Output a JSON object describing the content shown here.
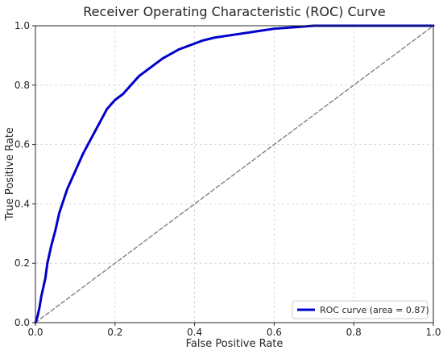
{
  "chart_data": {
    "type": "line",
    "title": "Receiver Operating Characteristic (ROC) Curve",
    "xlabel": "False Positive Rate",
    "ylabel": "True Positive Rate",
    "xlim": [
      0.0,
      1.0
    ],
    "ylim": [
      0.0,
      1.0
    ],
    "x_ticks": [
      "0.0",
      "0.2",
      "0.4",
      "0.6",
      "0.8",
      "1.0"
    ],
    "y_ticks": [
      "0.0",
      "0.2",
      "0.4",
      "0.6",
      "0.8",
      "1.0"
    ],
    "grid": true,
    "legend_position": "lower-right",
    "series": [
      {
        "name": "ROC curve (area = 0.87)",
        "color": "#0000cc",
        "style": "solid",
        "x": [
          0.0,
          0.005,
          0.01,
          0.015,
          0.02,
          0.025,
          0.03,
          0.04,
          0.05,
          0.06,
          0.07,
          0.08,
          0.09,
          0.1,
          0.12,
          0.14,
          0.16,
          0.18,
          0.2,
          0.22,
          0.24,
          0.26,
          0.28,
          0.3,
          0.32,
          0.34,
          0.36,
          0.38,
          0.4,
          0.42,
          0.45,
          0.5,
          0.55,
          0.6,
          0.65,
          0.7,
          0.8,
          0.9,
          1.0
        ],
        "y": [
          0.0,
          0.02,
          0.05,
          0.09,
          0.12,
          0.15,
          0.2,
          0.26,
          0.31,
          0.37,
          0.41,
          0.45,
          0.48,
          0.51,
          0.57,
          0.62,
          0.67,
          0.72,
          0.75,
          0.77,
          0.8,
          0.83,
          0.85,
          0.87,
          0.89,
          0.905,
          0.92,
          0.93,
          0.94,
          0.95,
          0.96,
          0.97,
          0.98,
          0.99,
          0.995,
          1.0,
          1.0,
          1.0,
          1.0
        ]
      },
      {
        "name": "",
        "color": "#808080",
        "style": "dashed",
        "x": [
          0.0,
          1.0
        ],
        "y": [
          0.0,
          1.0
        ]
      }
    ]
  }
}
